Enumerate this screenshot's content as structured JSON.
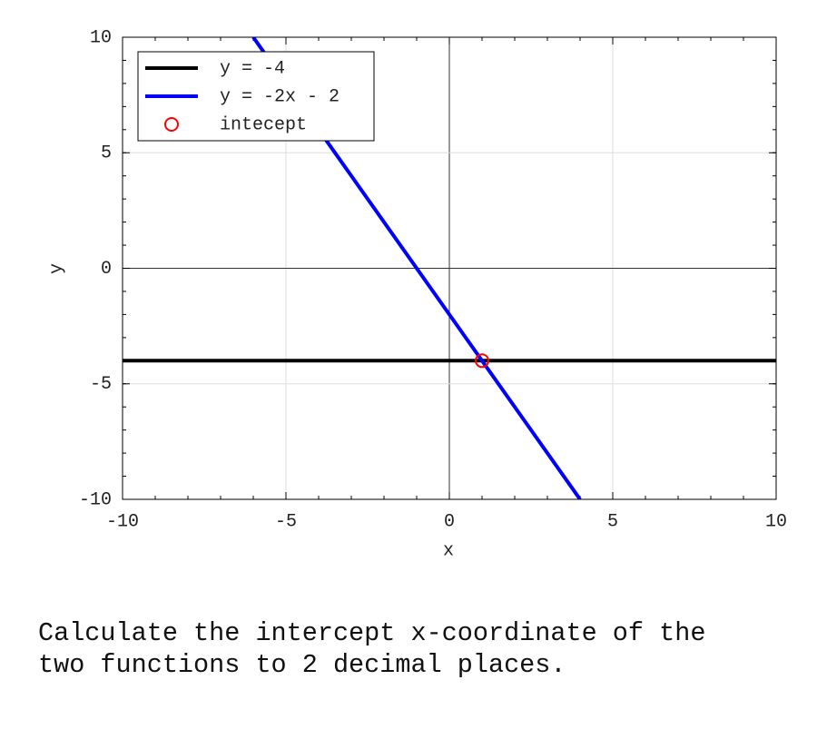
{
  "chart_data": {
    "type": "line",
    "xlabel": "x",
    "ylabel": "y",
    "xlim": [
      -10,
      10
    ],
    "ylim": [
      -10,
      10
    ],
    "xticks": [
      -10,
      -5,
      0,
      5,
      10
    ],
    "yticks": [
      -10,
      -5,
      0,
      5,
      10
    ],
    "minor_tick_step": 1,
    "grid": true,
    "legend": "upper left",
    "series": [
      {
        "name": "y = -4",
        "color": "#000000",
        "x": [
          -10,
          10
        ],
        "values": [
          -4,
          -4
        ]
      },
      {
        "name": "y = -2x - 2",
        "color": "#0000ff",
        "x": [
          -6,
          4
        ],
        "values": [
          10,
          -10
        ]
      },
      {
        "name": "intecept",
        "color": "#ff0000",
        "type": "scatter",
        "x": [
          1
        ],
        "values": [
          -4
        ]
      }
    ]
  },
  "question": "Calculate the intercept x-coordinate of the two functions to 2 decimal places."
}
